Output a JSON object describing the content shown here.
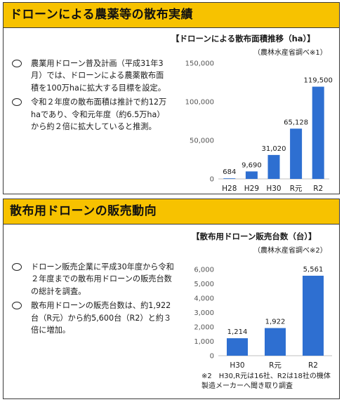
{
  "section1": {
    "header": "ドローンによる農薬等の散布実績",
    "bullets": [
      "農業用ドローン普及計画（平成31年3月）では、ドローンによる農薬散布面積を100万haに拡大する目標を設定。",
      "令和２年度の散布面積は推計で約12万haであり、令和元年度（約6.5万ha）から約２倍に拡大していると推測。"
    ],
    "chart_title": "【ドローンによる散布面積推移（ha）】",
    "chart_source": "（農林水産省調べ※1）"
  },
  "section2": {
    "header": "散布用ドローンの販売動向",
    "bullets": [
      "ドローン販売企業に平成30年度から令和２年度までの散布用ドローンの販売台数の総計を調査。",
      "散布用ドローンの販売台数は、約1,922台（R元）から約5,600台（R2）と約３倍に増加。"
    ],
    "chart_title": "【散布用ドローン販売台数（台）】",
    "chart_source": "（農林水産省調べ※2）",
    "note": "※2　H30,R元は16社、R2は18社の機体製造メーカーへ聞き取り調査"
  },
  "colors": {
    "header": "#f7c200",
    "bar": "#2e6fd1"
  },
  "chart_data": [
    {
      "type": "bar",
      "title": "【ドローンによる散布面積推移（ha）】",
      "categories": [
        "H28",
        "H29",
        "H30",
        "R元",
        "R2"
      ],
      "values": [
        684,
        9690,
        31020,
        65128,
        119500
      ],
      "value_labels": [
        "684",
        "9,690",
        "31,020",
        "65,128",
        "119,500"
      ],
      "ylim": [
        0,
        150000
      ],
      "yticks": [
        0,
        50000,
        100000,
        150000
      ],
      "ytick_labels": [
        "0",
        "50,000",
        "100,000",
        "150,000"
      ],
      "grid": false
    },
    {
      "type": "bar",
      "title": "【散布用ドローン販売台数（台）】",
      "categories": [
        "H30",
        "R元",
        "R2"
      ],
      "values": [
        1214,
        1922,
        5561
      ],
      "value_labels": [
        "1,214",
        "1,922",
        "5,561"
      ],
      "ylim": [
        0,
        6000
      ],
      "yticks": [
        0,
        1000,
        2000,
        3000,
        4000,
        5000,
        6000
      ],
      "ytick_labels": [
        "0",
        "1,000",
        "2,000",
        "3,000",
        "4,000",
        "5,000",
        "6,000"
      ],
      "grid": false
    }
  ]
}
